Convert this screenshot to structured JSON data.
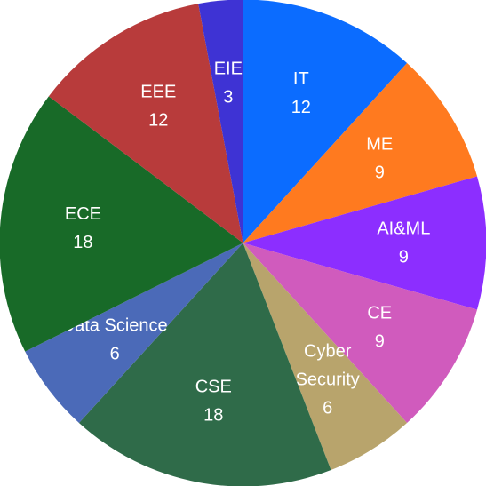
{
  "chart_data": {
    "type": "pie",
    "title": "",
    "start_angle_deg": 0,
    "direction": "clockwise",
    "slices": [
      {
        "label": "IT",
        "value": 12,
        "color": "#0b6cff"
      },
      {
        "label": "ME",
        "value": 9,
        "color": "#ff7a1f"
      },
      {
        "label": "AI&ML",
        "value": 9,
        "color": "#8c2eff"
      },
      {
        "label": "CE",
        "value": 9,
        "color": "#d05bbd"
      },
      {
        "label": "Cyber Security",
        "label_lines": [
          "Cyber",
          "Security"
        ],
        "value": 6,
        "color": "#b8a46c"
      },
      {
        "label": "CSE",
        "value": 18,
        "color": "#2f6b49"
      },
      {
        "label": "Data Science",
        "value": 6,
        "color": "#4b6ab8"
      },
      {
        "label": "ECE",
        "value": 18,
        "color": "#186a28"
      },
      {
        "label": "EEE",
        "value": 12,
        "color": "#b83b3b"
      },
      {
        "label": "EIE",
        "value": 3,
        "color": "#3e33d4"
      }
    ]
  }
}
